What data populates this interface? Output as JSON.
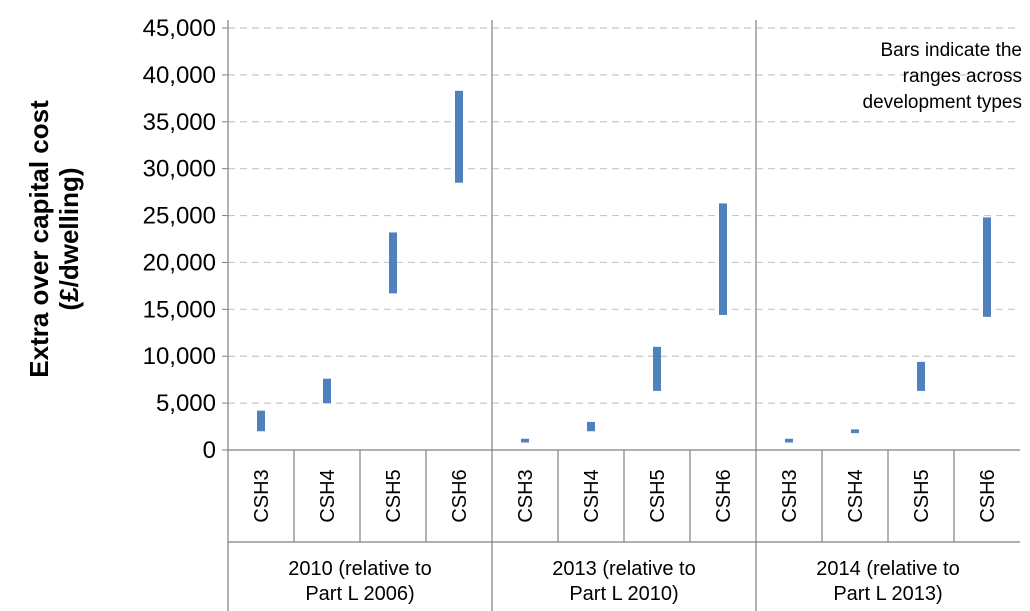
{
  "chart_data": {
    "type": "bar",
    "subtype": "floating-range",
    "title": "",
    "ylabel": "Extra over capital cost (£/dwelling)",
    "xlabel": "",
    "ylim": [
      0,
      45000
    ],
    "yticks": [
      0,
      5000,
      10000,
      15000,
      20000,
      25000,
      30000,
      35000,
      40000,
      45000
    ],
    "ytick_labels": [
      "0",
      "5,000",
      "10,000",
      "15,000",
      "20,000",
      "25,000",
      "30,000",
      "35,000",
      "40,000",
      "45,000"
    ],
    "grid": "horizontal-dashed",
    "bar_color": "#4F81BD",
    "annotation": [
      "Bars indicate the",
      "ranges across",
      "development types"
    ],
    "groups": [
      {
        "label": [
          "2010 (relative to",
          "Part L 2006)"
        ],
        "categories": [
          "CSH3",
          "CSH4",
          "CSH5",
          "CSH6"
        ],
        "ranges": [
          [
            2000,
            4200
          ],
          [
            5000,
            7600
          ],
          [
            16700,
            23200
          ],
          [
            28500,
            38300
          ]
        ]
      },
      {
        "label": [
          "2013 (relative to",
          "Part L 2010)"
        ],
        "categories": [
          "CSH3",
          "CSH4",
          "CSH5",
          "CSH6"
        ],
        "ranges": [
          [
            800,
            1200
          ],
          [
            2000,
            3000
          ],
          [
            6300,
            11000
          ],
          [
            14400,
            26300
          ]
        ]
      },
      {
        "label": [
          "2014 (relative to",
          "Part L 2013)"
        ],
        "categories": [
          "CSH3",
          "CSH4",
          "CSH5",
          "CSH6"
        ],
        "ranges": [
          [
            800,
            1200
          ],
          [
            1800,
            2200
          ],
          [
            6300,
            9400
          ],
          [
            14200,
            24800
          ]
        ]
      }
    ]
  }
}
